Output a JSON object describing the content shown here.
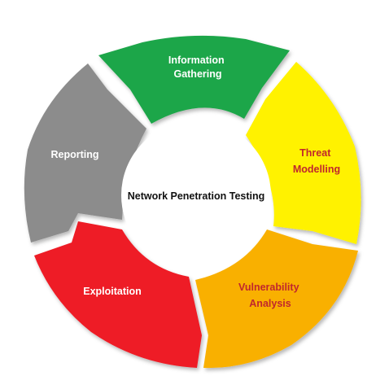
{
  "center": {
    "label": "Network Penetration Testing"
  },
  "segments": [
    {
      "id": "information-gathering",
      "lines": [
        "Information",
        "Gathering"
      ],
      "color": "#1fa649",
      "text_color": "#ffffff"
    },
    {
      "id": "threat-modelling",
      "lines": [
        "Threat",
        "Modelling"
      ],
      "color": "#fff200",
      "text_color": "#c0272d"
    },
    {
      "id": "vulnerability-analysis",
      "lines": [
        "Vulnerability",
        "Analysis"
      ],
      "color": "#f9b000",
      "text_color": "#c0272d"
    },
    {
      "id": "exploitation",
      "lines": [
        "Exploitation"
      ],
      "color": "#ee1c25",
      "text_color": "#ffffff"
    },
    {
      "id": "reporting",
      "lines": [
        "Reporting"
      ],
      "color": "#8c8c8c",
      "text_color": "#ffffff"
    }
  ]
}
